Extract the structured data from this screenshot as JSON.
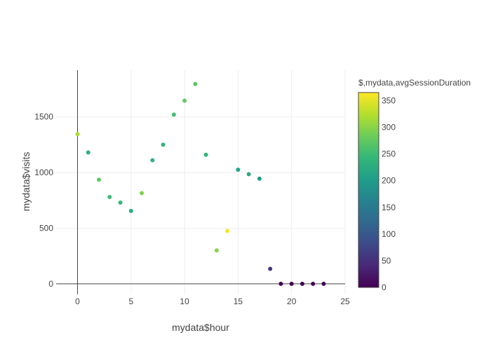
{
  "chart_data": {
    "type": "scatter",
    "xlabel": "mydata$hour",
    "ylabel": "mydata$visits",
    "xlim": [
      -2,
      25
    ],
    "ylim": [
      -95,
      1920
    ],
    "xticks": [
      0,
      5,
      10,
      15,
      20,
      25
    ],
    "yticks": [
      0,
      500,
      1000,
      1500
    ],
    "grid": true,
    "colorbar": {
      "title": "$,mydata,avgSessionDuration",
      "colorscale": "viridis",
      "range": [
        0,
        365
      ],
      "ticks": [
        0,
        50,
        100,
        150,
        200,
        250,
        300,
        350
      ]
    },
    "points": [
      {
        "x": 0,
        "y": 1345,
        "c": 320
      },
      {
        "x": 1,
        "y": 1180,
        "c": 230
      },
      {
        "x": 2,
        "y": 935,
        "c": 275
      },
      {
        "x": 3,
        "y": 780,
        "c": 250
      },
      {
        "x": 4,
        "y": 730,
        "c": 240
      },
      {
        "x": 5,
        "y": 655,
        "c": 225
      },
      {
        "x": 6,
        "y": 815,
        "c": 295
      },
      {
        "x": 7,
        "y": 1110,
        "c": 235
      },
      {
        "x": 8,
        "y": 1250,
        "c": 240
      },
      {
        "x": 9,
        "y": 1520,
        "c": 255
      },
      {
        "x": 10,
        "y": 1645,
        "c": 275
      },
      {
        "x": 11,
        "y": 1795,
        "c": 270
      },
      {
        "x": 12,
        "y": 1160,
        "c": 240
      },
      {
        "x": 13,
        "y": 300,
        "c": 300
      },
      {
        "x": 14,
        "y": 475,
        "c": 360
      },
      {
        "x": 15,
        "y": 1025,
        "c": 215
      },
      {
        "x": 16,
        "y": 985,
        "c": 225
      },
      {
        "x": 17,
        "y": 945,
        "c": 200
      },
      {
        "x": 18,
        "y": 135,
        "c": 60
      },
      {
        "x": 19,
        "y": 0,
        "c": 0
      },
      {
        "x": 20,
        "y": 0,
        "c": 0
      },
      {
        "x": 21,
        "y": 0,
        "c": 0
      },
      {
        "x": 22,
        "y": 0,
        "c": 0
      },
      {
        "x": 23,
        "y": 0,
        "c": 0
      }
    ]
  }
}
